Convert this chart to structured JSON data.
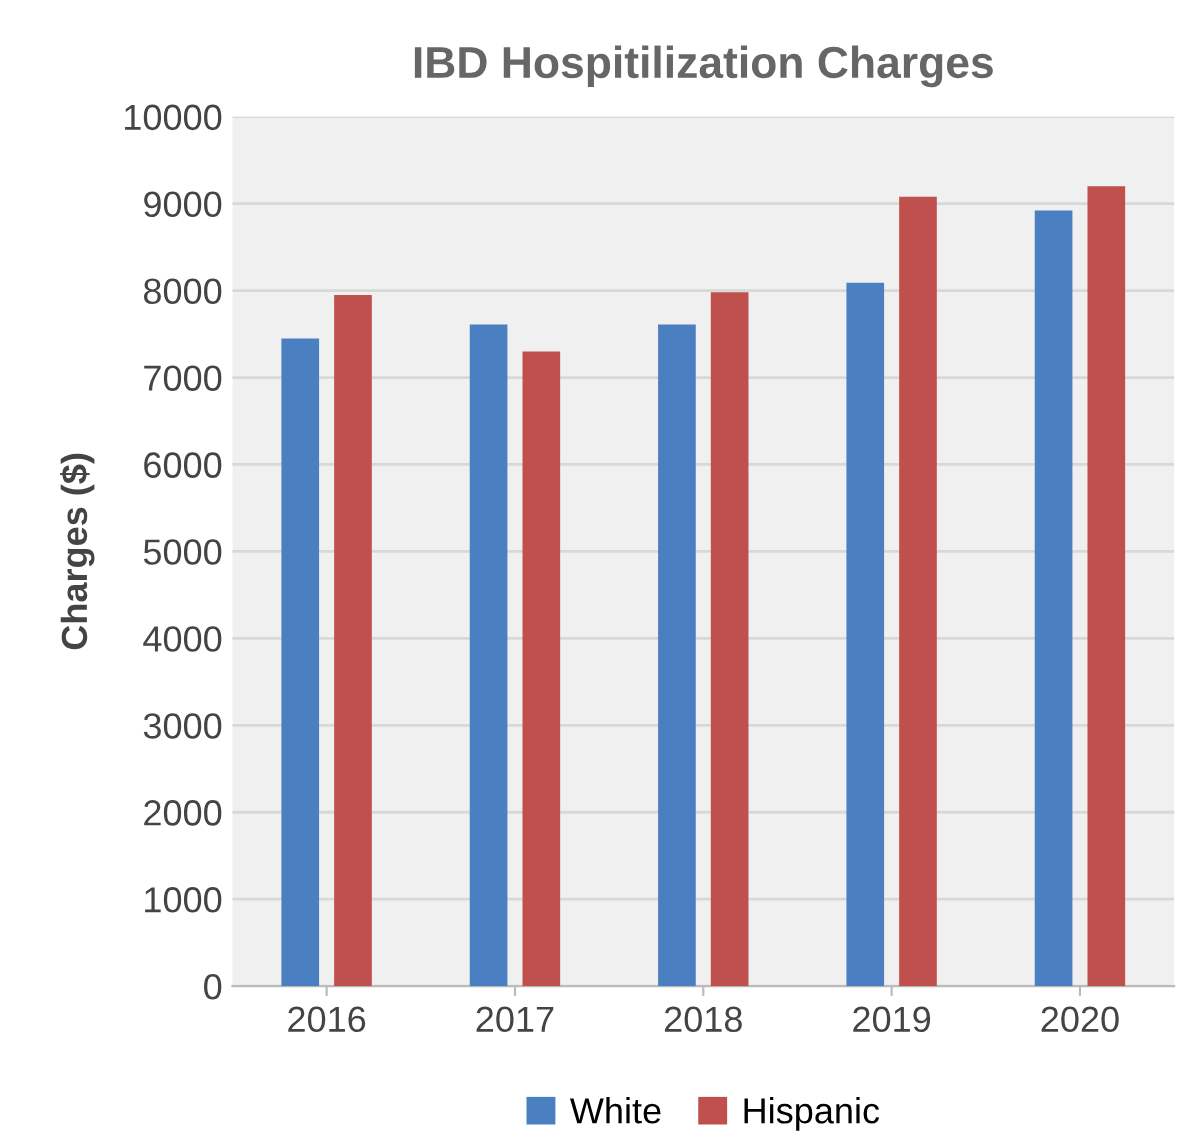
{
  "chart_data": {
    "type": "bar",
    "title": "IBD Hospitilization Charges",
    "ylabel": "Charges ($)",
    "categories": [
      "2016",
      "2017",
      "2018",
      "2019",
      "2020"
    ],
    "series": [
      {
        "name": "White",
        "color": "#4a7fc1",
        "values": [
          7450,
          7610,
          7610,
          8090,
          8920
        ]
      },
      {
        "name": "Hispanic",
        "color": "#c0504d",
        "values": [
          7950,
          7300,
          7980,
          9080,
          9200
        ]
      }
    ],
    "ylim": [
      0,
      10000
    ],
    "yticks": [
      0,
      1000,
      2000,
      3000,
      4000,
      5000,
      6000,
      7000,
      8000,
      9000,
      10000
    ],
    "grid": "y",
    "legend": "bottom"
  }
}
